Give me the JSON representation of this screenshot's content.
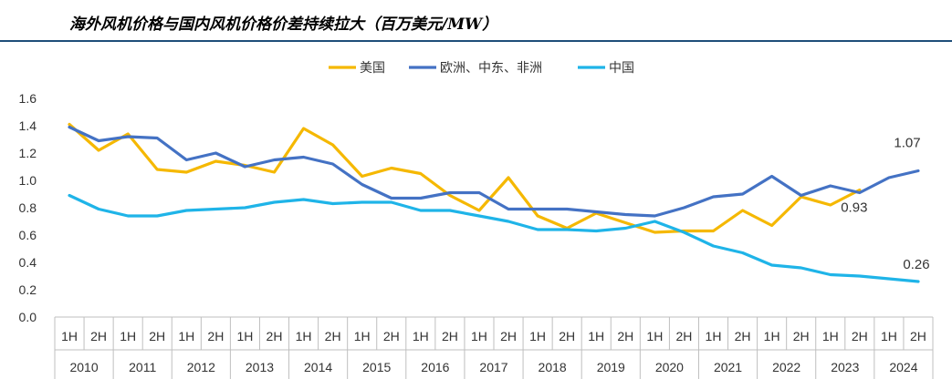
{
  "title": "海外风机价格与国内风机价格价差持续拉大（百万美元/MW）",
  "chart_data": {
    "type": "line",
    "ylim": [
      0,
      1.6
    ],
    "yticks": [
      "0.0",
      "0.2",
      "0.4",
      "0.6",
      "0.8",
      "1.0",
      "1.2",
      "1.4",
      "1.6"
    ],
    "categories": [
      "2010-1H",
      "2010-2H",
      "2011-1H",
      "2011-2H",
      "2012-1H",
      "2012-2H",
      "2013-1H",
      "2013-2H",
      "2014-1H",
      "2014-2H",
      "2015-1H",
      "2015-2H",
      "2016-1H",
      "2016-2H",
      "2017-1H",
      "2017-2H",
      "2018-1H",
      "2018-2H",
      "2019-1H",
      "2019-2H",
      "2020-1H",
      "2020-2H",
      "2021-1H",
      "2021-2H",
      "2022-1H",
      "2022-2H",
      "2023-1H",
      "2023-2H",
      "2024-1H",
      "2024-2H"
    ],
    "half_labels": [
      "1H",
      "2H"
    ],
    "years": [
      "2010",
      "2011",
      "2012",
      "2013",
      "2014",
      "2015",
      "2016",
      "2017",
      "2018",
      "2019",
      "2020",
      "2021",
      "2022",
      "2023",
      "2024"
    ],
    "legend_position": "top",
    "series": [
      {
        "name": "美国",
        "color": "#f5b800",
        "values": [
          1.41,
          1.22,
          1.34,
          1.08,
          1.06,
          1.14,
          1.11,
          1.06,
          1.38,
          1.26,
          1.03,
          1.09,
          1.05,
          0.89,
          0.78,
          1.02,
          0.74,
          0.65,
          0.76,
          0.69,
          0.62,
          0.63,
          0.63,
          0.78,
          0.67,
          0.88,
          0.82,
          0.93,
          null,
          null
        ]
      },
      {
        "name": "欧洲、中东、非洲",
        "color": "#4472c4",
        "values": [
          1.39,
          1.29,
          1.32,
          1.31,
          1.15,
          1.2,
          1.1,
          1.15,
          1.17,
          1.12,
          0.97,
          0.87,
          0.87,
          0.91,
          0.91,
          0.79,
          0.79,
          0.79,
          0.77,
          0.75,
          0.74,
          0.8,
          0.88,
          0.9,
          1.03,
          0.89,
          0.96,
          0.91,
          1.02,
          1.07
        ]
      },
      {
        "name": "中国",
        "color": "#1fb4e8",
        "values": [
          0.89,
          0.79,
          0.74,
          0.74,
          0.78,
          0.79,
          0.8,
          0.84,
          0.86,
          0.83,
          0.84,
          0.84,
          0.78,
          0.78,
          0.74,
          0.7,
          0.64,
          0.64,
          0.63,
          0.65,
          0.7,
          0.62,
          0.52,
          0.47,
          0.38,
          0.36,
          0.31,
          0.3,
          0.28,
          0.26
        ]
      }
    ],
    "annotations": [
      {
        "text": "1.07",
        "series": 1,
        "index": 29
      },
      {
        "text": "0.93",
        "series": 0,
        "index": 27
      },
      {
        "text": "0.26",
        "series": 2,
        "index": 29
      }
    ]
  }
}
